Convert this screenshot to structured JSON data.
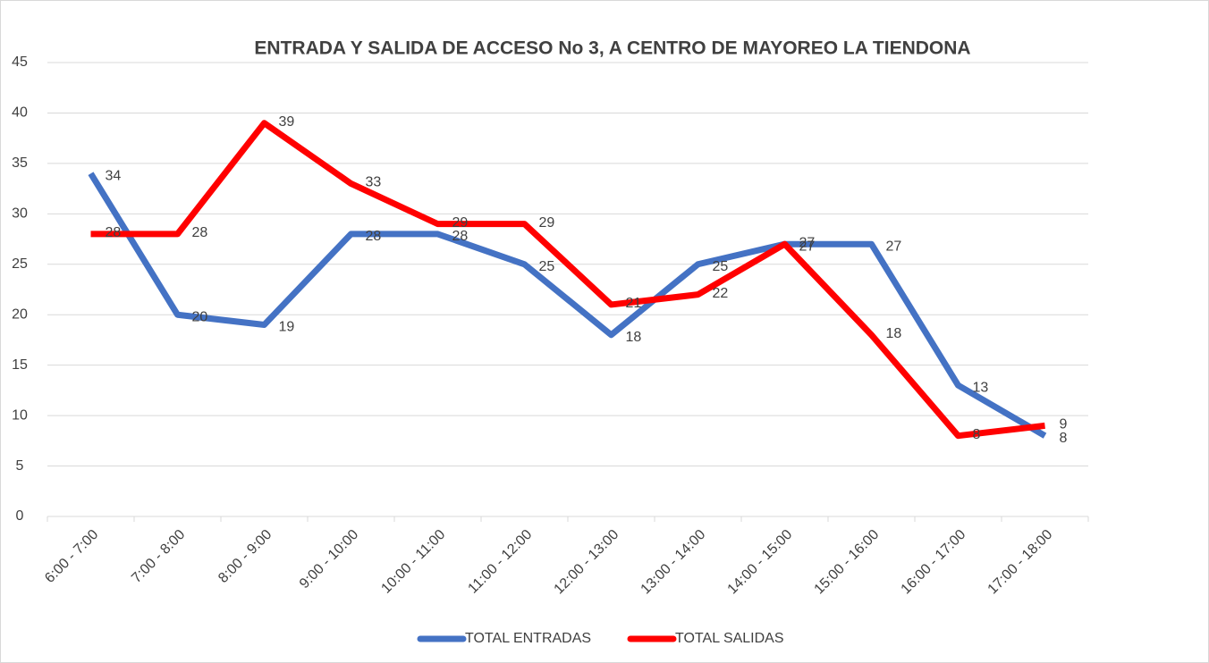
{
  "chart_data": {
    "type": "line",
    "title": "ENTRADA Y SALIDA DE ACCESO No 3, A CENTRO DE MAYOREO LA TIENDONA",
    "categories": [
      "6:00 - 7:00",
      "7:00 - 8:00",
      "8:00 - 9:00",
      "9:00 - 10:00",
      "10:00 - 11:00",
      "11:00 - 12:00",
      "12:00 - 13:00",
      "13:00 - 14:00",
      "14:00 - 15:00",
      "15:00 - 16:00",
      "16:00 - 17:00",
      "17:00 - 18:00"
    ],
    "series": [
      {
        "name": "TOTAL ENTRADAS",
        "color": "#4472c4",
        "values": [
          34,
          20,
          19,
          28,
          28,
          25,
          18,
          25,
          27,
          27,
          13,
          8
        ]
      },
      {
        "name": "TOTAL SALIDAS",
        "color": "#ff0000",
        "values": [
          28,
          28,
          39,
          33,
          29,
          29,
          21,
          22,
          27,
          18,
          8,
          9
        ]
      }
    ],
    "ylim": [
      0,
      45
    ],
    "yticks": [
      0,
      5,
      10,
      15,
      20,
      25,
      30,
      35,
      40,
      45
    ],
    "grid": true,
    "legend": "bottom"
  }
}
